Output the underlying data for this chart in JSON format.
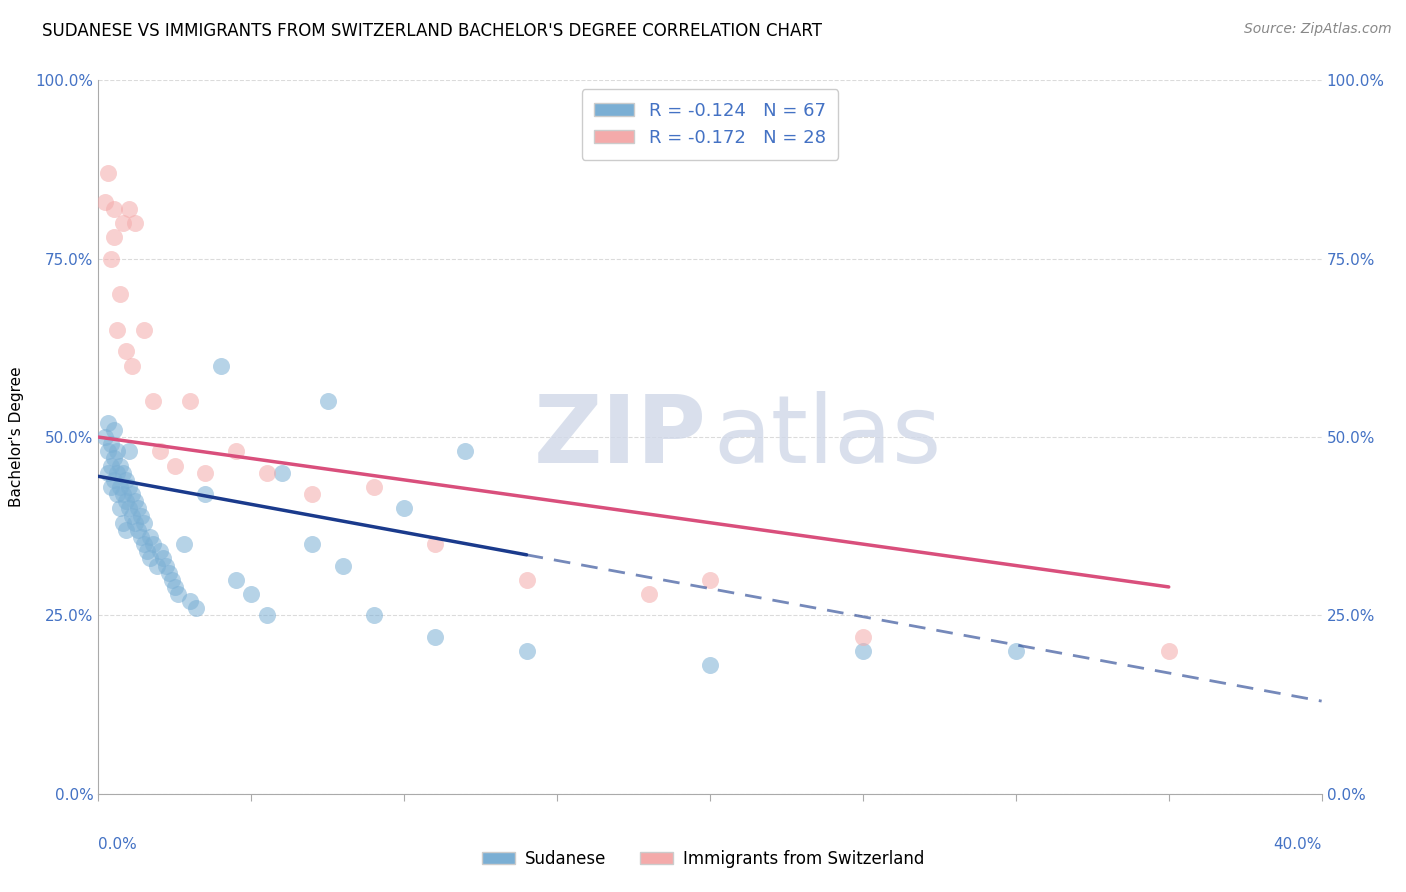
{
  "title": "SUDANESE VS IMMIGRANTS FROM SWITZERLAND BACHELOR'S DEGREE CORRELATION CHART",
  "source_text": "Source: ZipAtlas.com",
  "ylabel": "Bachelor's Degree",
  "xlim": [
    0.0,
    40.0
  ],
  "ylim": [
    0.0,
    100.0
  ],
  "ytick_values": [
    0.0,
    25.0,
    50.0,
    75.0,
    100.0
  ],
  "blue_color": "#7BAFD4",
  "pink_color": "#F4AAAA",
  "blue_line_color": "#1A3A8C",
  "pink_line_color": "#D94F7C",
  "legend_r_blue": "R = -0.124",
  "legend_n_blue": "N = 67",
  "legend_r_pink": "R = -0.172",
  "legend_n_pink": "N = 28",
  "legend_label_blue": "Sudanese",
  "legend_label_pink": "Immigrants from Switzerland",
  "blue_scatter_x": [
    0.2,
    0.3,
    0.3,
    0.3,
    0.4,
    0.4,
    0.4,
    0.5,
    0.5,
    0.5,
    0.6,
    0.6,
    0.6,
    0.7,
    0.7,
    0.7,
    0.8,
    0.8,
    0.8,
    0.9,
    0.9,
    0.9,
    1.0,
    1.0,
    1.0,
    1.1,
    1.1,
    1.2,
    1.2,
    1.3,
    1.3,
    1.4,
    1.4,
    1.5,
    1.5,
    1.6,
    1.7,
    1.7,
    1.8,
    1.9,
    2.0,
    2.1,
    2.2,
    2.3,
    2.4,
    2.5,
    2.6,
    2.8,
    3.0,
    3.2,
    3.5,
    4.0,
    4.5,
    5.0,
    5.5,
    6.0,
    7.0,
    7.5,
    8.0,
    9.0,
    10.0,
    11.0,
    12.0,
    14.0,
    20.0,
    25.0,
    30.0
  ],
  "blue_scatter_y": [
    50,
    48,
    52,
    45,
    46,
    49,
    43,
    47,
    44,
    51,
    45,
    42,
    48,
    43,
    46,
    40,
    42,
    45,
    38,
    41,
    44,
    37,
    40,
    43,
    48,
    39,
    42,
    38,
    41,
    37,
    40,
    36,
    39,
    35,
    38,
    34,
    36,
    33,
    35,
    32,
    34,
    33,
    32,
    31,
    30,
    29,
    28,
    35,
    27,
    26,
    42,
    60,
    30,
    28,
    25,
    45,
    35,
    55,
    32,
    25,
    40,
    22,
    48,
    20,
    18,
    20,
    20
  ],
  "pink_scatter_x": [
    0.2,
    0.3,
    0.4,
    0.5,
    0.5,
    0.6,
    0.7,
    0.8,
    0.9,
    1.0,
    1.1,
    1.2,
    1.5,
    1.8,
    2.0,
    2.5,
    3.0,
    3.5,
    4.5,
    5.5,
    7.0,
    9.0,
    11.0,
    14.0,
    18.0,
    20.0,
    25.0,
    35.0
  ],
  "pink_scatter_y": [
    83,
    87,
    75,
    82,
    78,
    65,
    70,
    80,
    62,
    82,
    60,
    80,
    65,
    55,
    48,
    46,
    55,
    45,
    48,
    45,
    42,
    43,
    35,
    30,
    28,
    30,
    22,
    20
  ],
  "blue_reg_x0": 0.0,
  "blue_reg_x1": 14.0,
  "blue_reg_y0": 44.5,
  "blue_reg_y1": 33.5,
  "blue_dash_x0": 14.0,
  "blue_dash_x1": 40.0,
  "blue_dash_y0": 33.5,
  "blue_dash_y1": 13.0,
  "pink_reg_x0": 0.0,
  "pink_reg_x1": 35.0,
  "pink_reg_y0": 50.0,
  "pink_reg_y1": 29.0,
  "background_color": "#FFFFFF",
  "grid_color": "#CCCCCC",
  "axis_label_color": "#4472C4",
  "title_fontsize": 12,
  "source_fontsize": 10,
  "tick_fontsize": 11
}
